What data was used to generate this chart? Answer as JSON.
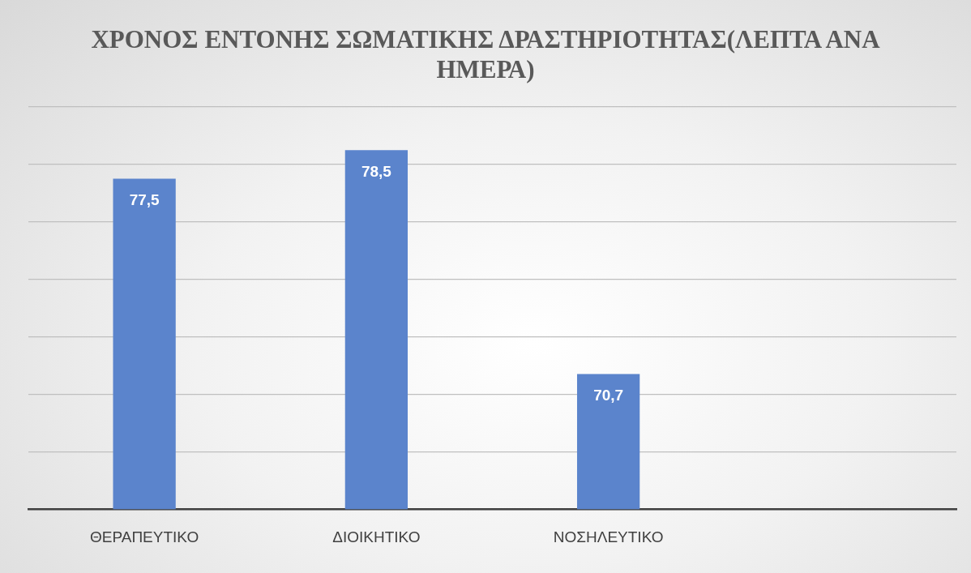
{
  "chart_data": {
    "type": "bar",
    "title": "ΧΡΟΝΟΣ ΕΝΤΟΝΗΣ ΣΩΜΑΤΙΚΗΣ ΔΡΑΣΤΗΡΙΟΤΗΤΑΣ(ΛΕΠΤΑ ΑΝΑ ΗΜΕΡΑ)",
    "categories": [
      "ΘΕΡΑΠΕΥΤΙΚΟ",
      "ΔΙΟΙΚΗΤΙΚΟ",
      "ΝΟΣΗΛΕΥΤΙΚΟ",
      null
    ],
    "values": [
      77.5,
      78.5,
      70.7,
      null
    ],
    "value_labels": [
      "77,5",
      "78,5",
      "70,7",
      null
    ],
    "color": "#5b84cc",
    "ylim": [
      66,
      80
    ],
    "yticks": [
      {
        "value": 66,
        "label": null
      },
      {
        "value": 68,
        "label": null
      },
      {
        "value": 70,
        "label": null
      },
      {
        "value": 72,
        "label": null
      },
      {
        "value": 74,
        "label": null
      },
      {
        "value": 76,
        "label": null
      },
      {
        "value": 78,
        "label": null
      },
      {
        "value": 80,
        "label": null
      }
    ],
    "grid": "y",
    "tick_labels": "x",
    "legend": false
  }
}
